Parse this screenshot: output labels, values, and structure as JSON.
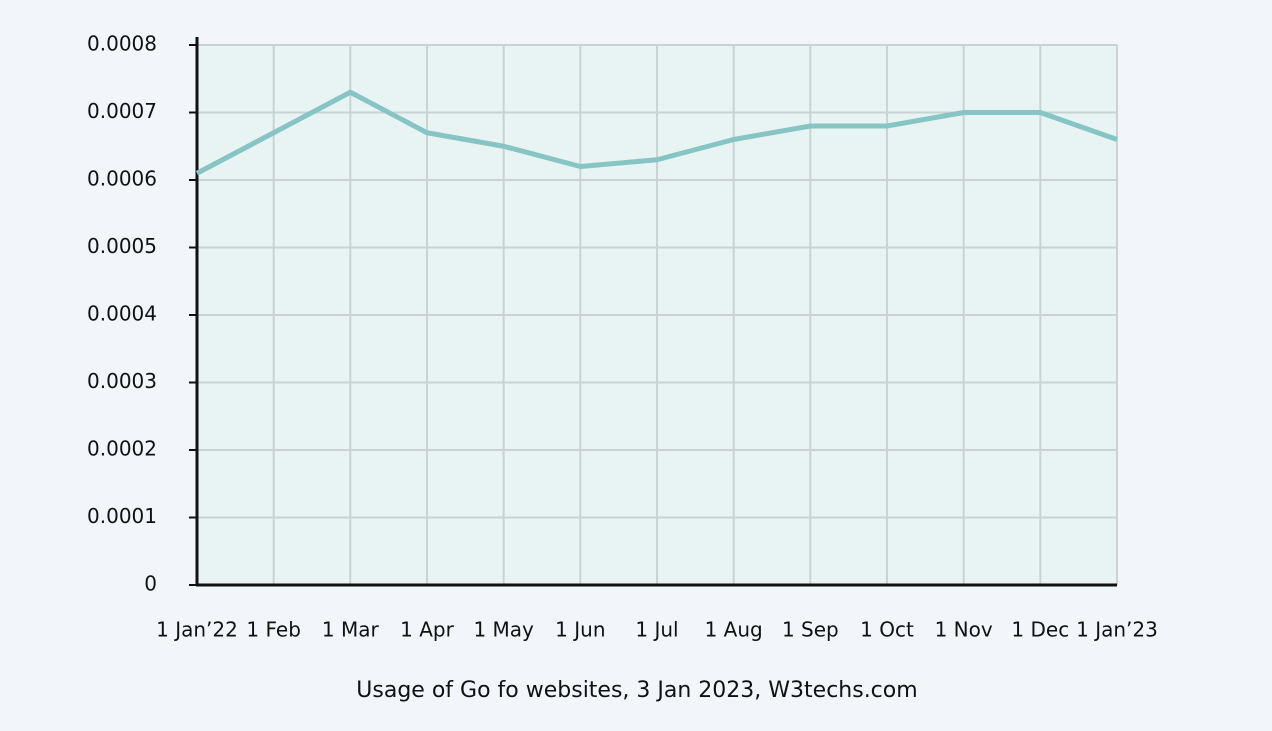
{
  "chart_data": {
    "type": "line",
    "title": "Usage of Go fo websites, 3 Jan 2023, W3techs.com",
    "categories": [
      "1 Jan’22",
      "1 Feb",
      "1 Mar",
      "1 Apr",
      "1 May",
      "1 Jun",
      "1 Jul",
      "1 Aug",
      "1 Sep",
      "1 Oct",
      "1 Nov",
      "1 Dec",
      "1 Jan’23"
    ],
    "values": [
      0.00061,
      0.00067,
      0.00073,
      0.00067,
      0.00065,
      0.00062,
      0.00063,
      0.00066,
      0.00068,
      0.00068,
      0.0007,
      0.0007,
      0.00066
    ],
    "color": "#86c5c3",
    "ylim": [
      0,
      0.0008
    ],
    "yticks": [
      0,
      0.0001,
      0.0002,
      0.0003,
      0.0004,
      0.0005,
      0.0006,
      0.0007,
      0.0008
    ],
    "grid": true
  }
}
